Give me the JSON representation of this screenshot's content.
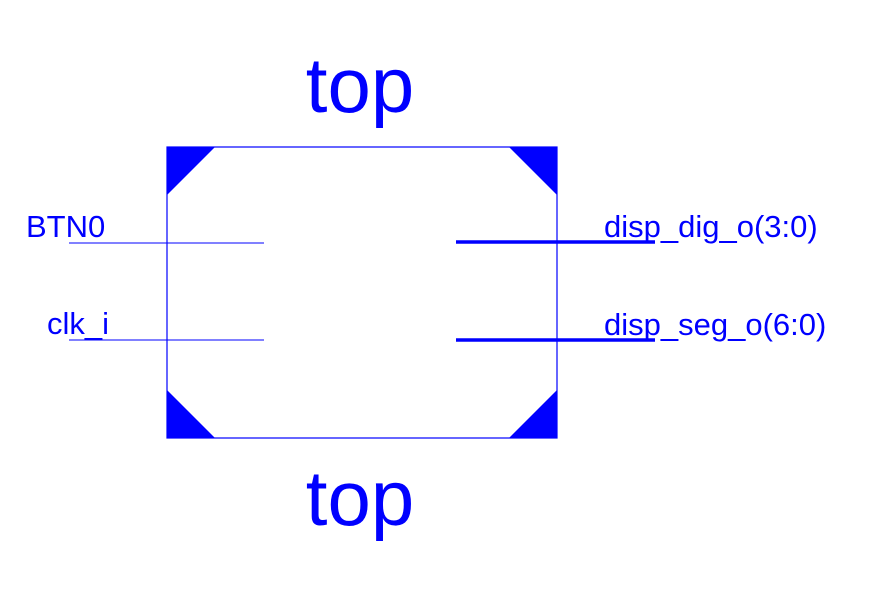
{
  "diagram": {
    "color": "#0000ff",
    "top_label": "top",
    "bottom_label": "top",
    "inputs": [
      {
        "label": "BTN0",
        "bus": false
      },
      {
        "label": "clk_i",
        "bus": false
      }
    ],
    "outputs": [
      {
        "label": "disp_dig_o(3:0)",
        "bus": true
      },
      {
        "label": "disp_seg_o(6:0)",
        "bus": true
      }
    ]
  }
}
